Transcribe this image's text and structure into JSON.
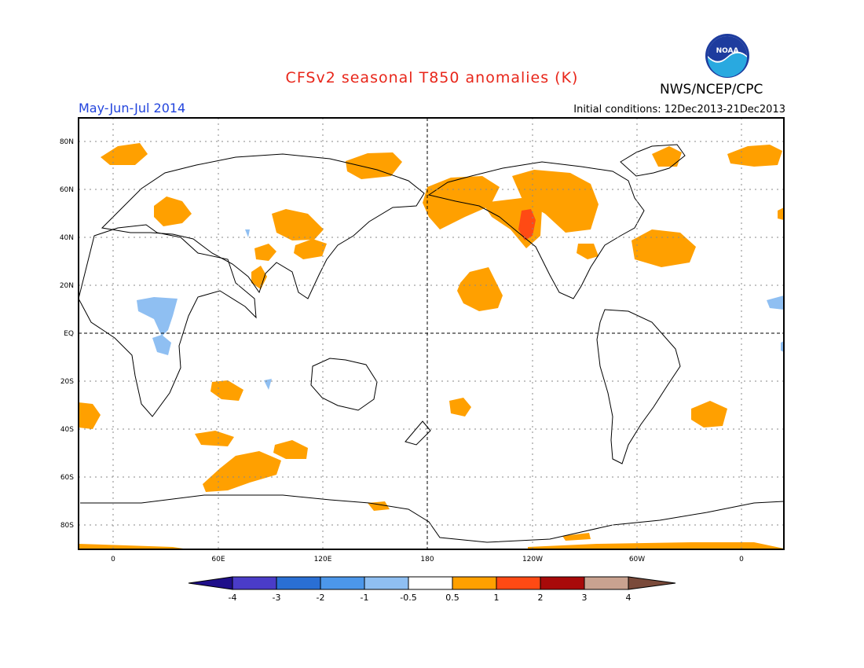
{
  "title": "CFSv2 seasonal T850 anomalies (K)",
  "period": "May-Jun-Jul 2014",
  "agency": "NWS/NCEP/CPC",
  "logo_text": "NOAA",
  "initial_conditions": "Initial conditions: 12Dec2013-21Dec2013",
  "lat_labels": [
    "80N",
    "60N",
    "40N",
    "20N",
    "EQ",
    "20S",
    "40S",
    "60S",
    "80S"
  ],
  "lon_labels": [
    "0",
    "60E",
    "120E",
    "180",
    "120W",
    "60W",
    "0"
  ],
  "colorbar": {
    "labels": [
      "-4",
      "-3",
      "-2",
      "-1",
      "-0.5",
      "0.5",
      "1",
      "2",
      "3",
      "4"
    ],
    "colors": [
      "#1f0f8a",
      "#4a3cc8",
      "#2a6fd4",
      "#4c97ea",
      "#8fbff2",
      "#ffffff",
      "#ffa000",
      "#ff4a14",
      "#a80a0a",
      "#c9a290",
      "#7a4a3a"
    ]
  }
}
